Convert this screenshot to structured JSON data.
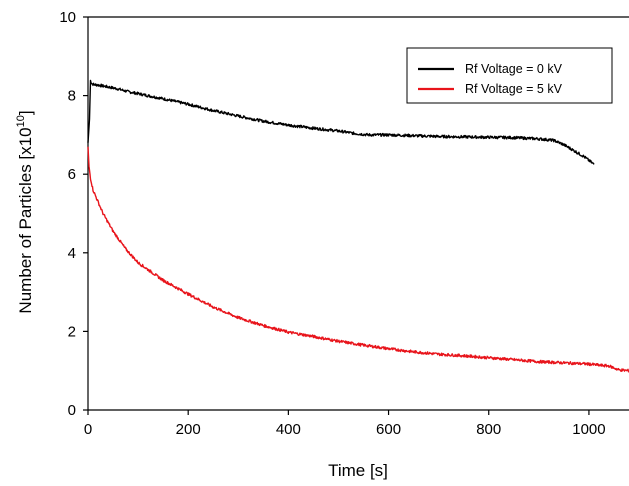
{
  "chart_data": {
    "type": "line",
    "xlabel": "Time [s]",
    "ylabel_prefix": "Number of Particles [x10",
    "ylabel_exponent": "10",
    "ylabel_suffix": "]",
    "xlim": [
      0,
      1080
    ],
    "ylim": [
      0,
      10
    ],
    "x_ticks": [
      0,
      200,
      400,
      600,
      800,
      1000
    ],
    "y_ticks": [
      0,
      2,
      4,
      6,
      8,
      10
    ],
    "legend_position": "top-right",
    "series": [
      {
        "name": "Rf Voltage = 0 kV",
        "color": "#000000",
        "x": [
          0,
          3,
          5,
          8,
          12,
          20,
          40,
          60,
          80,
          100,
          150,
          200,
          250,
          300,
          350,
          400,
          450,
          500,
          530,
          560,
          600,
          650,
          700,
          750,
          800,
          850,
          900,
          930,
          950,
          970,
          990,
          1010
        ],
        "y": [
          6.8,
          7.4,
          8.38,
          8.3,
          8.28,
          8.27,
          8.22,
          8.17,
          8.1,
          8.05,
          7.92,
          7.78,
          7.62,
          7.48,
          7.35,
          7.25,
          7.17,
          7.1,
          7.04,
          7.0,
          7.0,
          6.98,
          6.96,
          6.95,
          6.94,
          6.93,
          6.9,
          6.86,
          6.75,
          6.6,
          6.45,
          6.25
        ]
      },
      {
        "name": "Rf Voltage = 5 kV",
        "color": "#e8141b",
        "x": [
          0,
          2,
          5,
          10,
          20,
          30,
          50,
          75,
          100,
          150,
          200,
          250,
          300,
          350,
          400,
          450,
          500,
          550,
          600,
          650,
          700,
          750,
          800,
          850,
          900,
          950,
          1000,
          1020,
          1040,
          1060,
          1080
        ],
        "y": [
          6.7,
          6.2,
          5.9,
          5.6,
          5.3,
          5.0,
          4.55,
          4.1,
          3.75,
          3.3,
          2.95,
          2.62,
          2.35,
          2.15,
          1.98,
          1.87,
          1.75,
          1.65,
          1.56,
          1.48,
          1.42,
          1.38,
          1.33,
          1.28,
          1.23,
          1.2,
          1.17,
          1.14,
          1.12,
          1.02,
          1.0
        ]
      }
    ]
  }
}
